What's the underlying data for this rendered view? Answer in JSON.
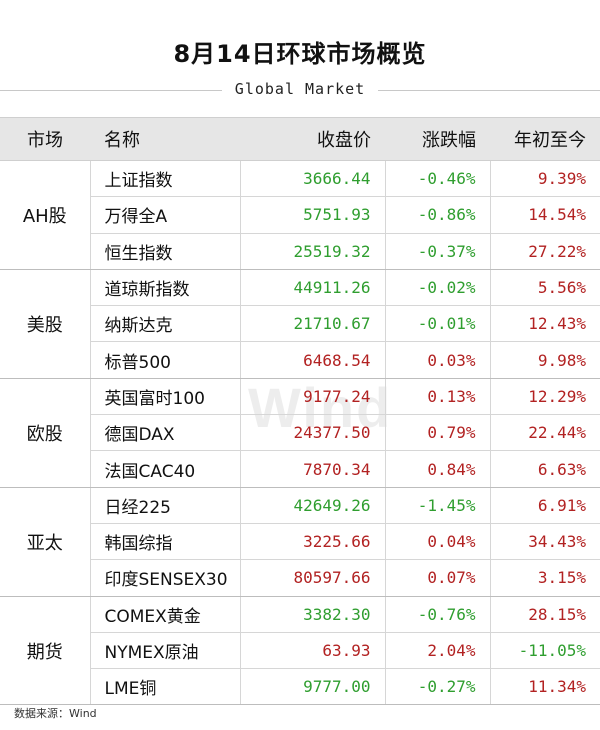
{
  "title": "8月14日环球市场概览",
  "subtitle": "Global Market",
  "watermark": "Wind",
  "headers": {
    "market": "市场",
    "name": "名称",
    "close": "收盘价",
    "change": "涨跌幅",
    "ytd": "年初至今"
  },
  "colors": {
    "up": "#b22222",
    "down": "#2f9e2f",
    "header_bg": "#e6e6e6"
  },
  "groups": [
    {
      "market": "AH股",
      "rows": [
        {
          "name": "上证指数",
          "close": "3666.44",
          "change": "-0.46%",
          "ytd": "9.39%"
        },
        {
          "name": "万得全A",
          "close": "5751.93",
          "change": "-0.86%",
          "ytd": "14.54%"
        },
        {
          "name": "恒生指数",
          "close": "25519.32",
          "change": "-0.37%",
          "ytd": "27.22%"
        }
      ]
    },
    {
      "market": "美股",
      "rows": [
        {
          "name": "道琼斯指数",
          "close": "44911.26",
          "change": "-0.02%",
          "ytd": "5.56%"
        },
        {
          "name": "纳斯达克",
          "close": "21710.67",
          "change": "-0.01%",
          "ytd": "12.43%"
        },
        {
          "name": "标普500",
          "close": "6468.54",
          "change": "0.03%",
          "ytd": "9.98%"
        }
      ]
    },
    {
      "market": "欧股",
      "rows": [
        {
          "name": "英国富时100",
          "close": "9177.24",
          "change": "0.13%",
          "ytd": "12.29%"
        },
        {
          "name": "德国DAX",
          "close": "24377.50",
          "change": "0.79%",
          "ytd": "22.44%"
        },
        {
          "name": "法国CAC40",
          "close": "7870.34",
          "change": "0.84%",
          "ytd": "6.63%"
        }
      ]
    },
    {
      "market": "亚太",
      "rows": [
        {
          "name": "日经225",
          "close": "42649.26",
          "change": "-1.45%",
          "ytd": "6.91%"
        },
        {
          "name": "韩国综指",
          "close": "3225.66",
          "change": "0.04%",
          "ytd": "34.43%"
        },
        {
          "name": "印度SENSEX30",
          "close": "80597.66",
          "change": "0.07%",
          "ytd": "3.15%"
        }
      ]
    },
    {
      "market": "期货",
      "rows": [
        {
          "name": "COMEX黄金",
          "close": "3382.30",
          "change": "-0.76%",
          "ytd": "28.15%"
        },
        {
          "name": "NYMEX原油",
          "close": "63.93",
          "change": "2.04%",
          "ytd": "-11.05%"
        },
        {
          "name": "LME铜",
          "close": "9777.00",
          "change": "-0.27%",
          "ytd": "11.34%"
        }
      ]
    }
  ],
  "source": "数据来源：Wind"
}
